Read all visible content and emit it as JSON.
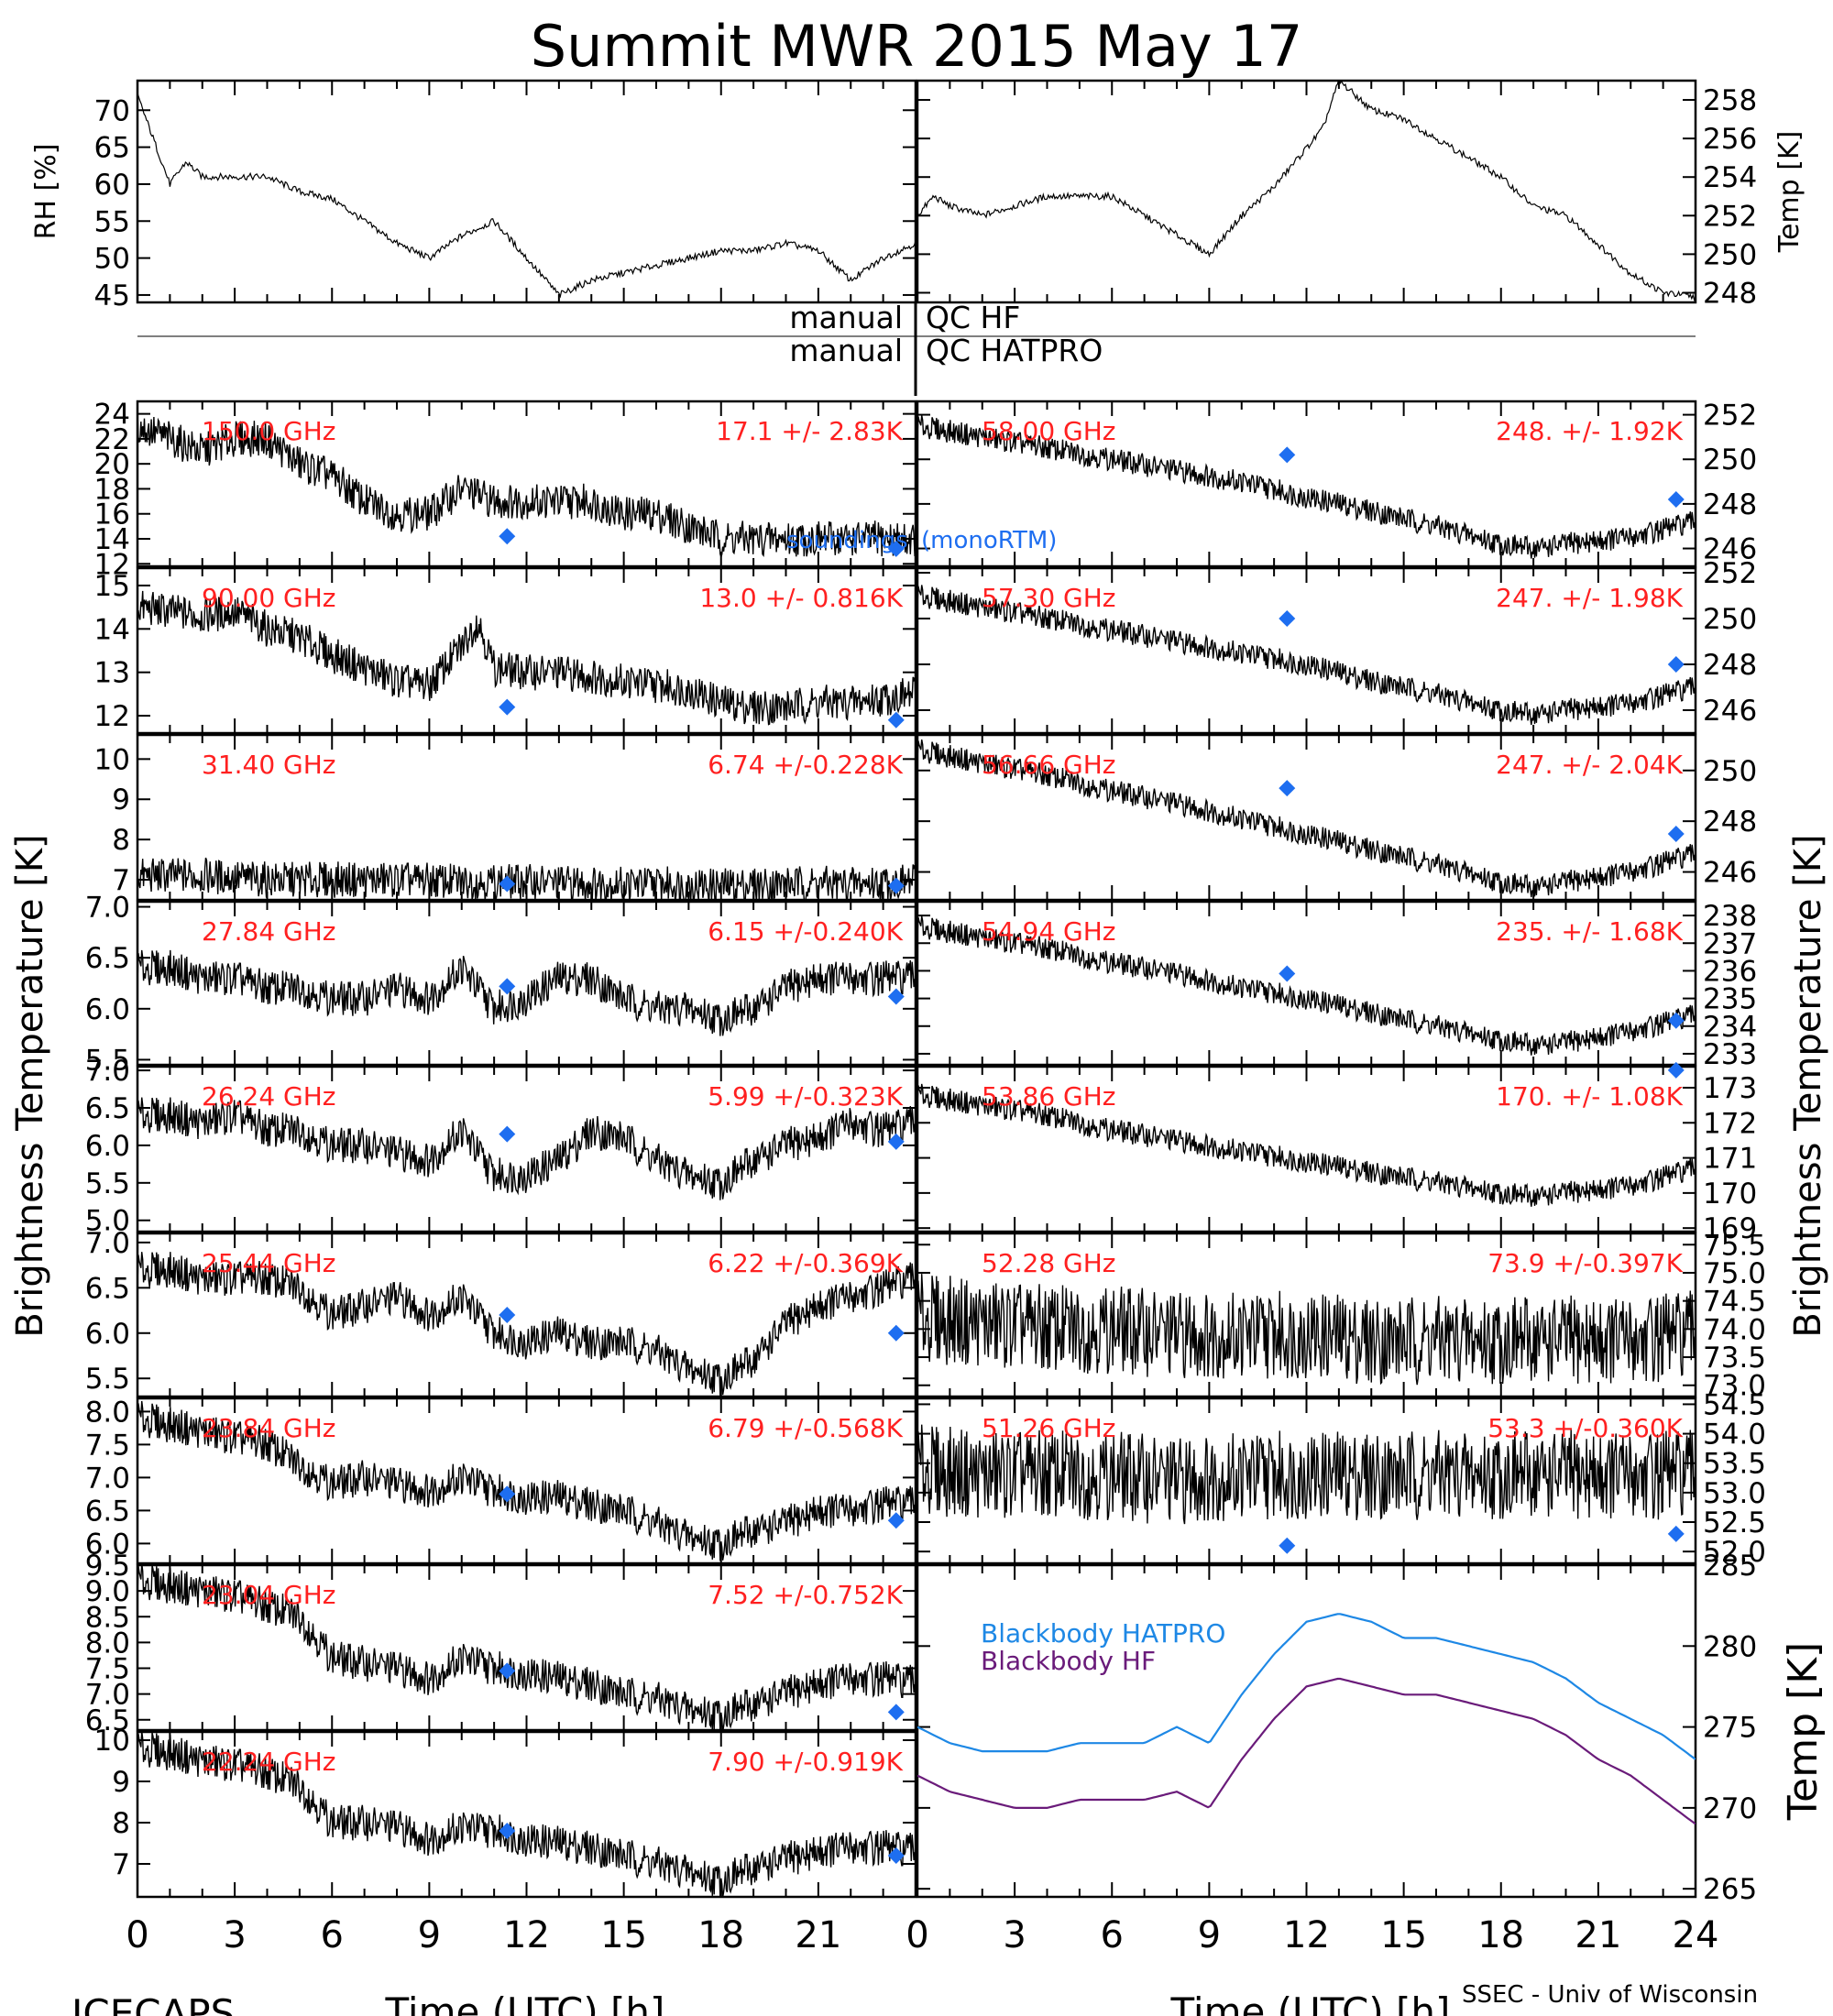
{
  "title": "Summit MWR 2015 May 17",
  "footer": {
    "left": "ICECAPS",
    "right": "SSEC - Univ of Wisconsin",
    "xlabel": "Time (UTC) [h]",
    "ylabel_left": "Brightness Temperature [K]",
    "ylabel_right": "Brightness Temperature [K]"
  },
  "qc": {
    "hf": {
      "left": "manual",
      "right": "QC HF"
    },
    "hatpro": {
      "left": "manual",
      "right": "QC HATPRO"
    }
  },
  "legend_top": {
    "soundings": "soundings",
    "monortm": "(monoRTM)"
  },
  "colors": {
    "trace": "#000000",
    "label": "#ff2020",
    "marker": "#1e6ef0",
    "hatpro": "#1e88e5",
    "hf": "#6a1b7a"
  },
  "chart_data": [
    {
      "id": "rh",
      "type": "line",
      "ylabel": "RH [%]",
      "ylim": [
        44,
        74
      ],
      "yticks": [
        45,
        50,
        55,
        60,
        65,
        70
      ],
      "x": [
        0,
        0.5,
        1,
        1.5,
        2,
        3,
        4,
        5,
        6,
        7,
        8,
        9,
        10,
        11,
        12,
        13,
        14,
        15,
        16,
        17,
        18,
        19,
        20,
        21,
        22,
        23,
        24
      ],
      "y": [
        72,
        66,
        60,
        63,
        61,
        61,
        61,
        59,
        58,
        55,
        52,
        50,
        53,
        55,
        50,
        45,
        47,
        48,
        49,
        50,
        51,
        51,
        52,
        51,
        47,
        50,
        52
      ]
    },
    {
      "id": "temp",
      "type": "line",
      "ylabel": "Temp [K]",
      "ylim": [
        247.5,
        259
      ],
      "yticks": [
        248,
        250,
        252,
        254,
        256,
        258
      ],
      "x": [
        0,
        0.5,
        1,
        2,
        3,
        4,
        5,
        6,
        7,
        8,
        9,
        10,
        11,
        12,
        12.5,
        13,
        14,
        15,
        16,
        17,
        18,
        19,
        20,
        21,
        22,
        23,
        24
      ],
      "y": [
        252,
        253,
        252.5,
        252,
        252.5,
        253,
        253,
        253,
        252,
        251,
        250,
        252,
        253.5,
        255.5,
        256.5,
        259,
        257.5,
        257,
        256,
        255,
        254,
        252.5,
        252,
        250.5,
        249,
        248,
        247.8
      ]
    },
    {
      "id": "ch150",
      "type": "line",
      "label": "150.0 GHz",
      "stat": "17.1 +/- 2.83K",
      "ylim": [
        11.8,
        25
      ],
      "yticks": [
        12,
        14,
        16,
        18,
        20,
        22,
        24
      ],
      "x": [
        0,
        1,
        2,
        3,
        4,
        5,
        6,
        7,
        8,
        9,
        10,
        11,
        12,
        13,
        14,
        15,
        16,
        17,
        18,
        19,
        20,
        21,
        22,
        23,
        24
      ],
      "y": [
        23,
        22,
        21,
        22,
        22,
        20,
        19,
        17,
        16,
        16,
        18,
        17,
        17,
        17,
        17,
        16,
        16,
        15,
        14,
        14,
        14,
        14,
        14,
        14,
        14
      ],
      "soundings": [
        {
          "x": 11.4,
          "y": 14.2
        },
        {
          "x": 23.4,
          "y": 13.2
        }
      ]
    },
    {
      "id": "ch90",
      "type": "line",
      "label": "90.00 GHz",
      "stat": "13.0 +/- 0.816K",
      "ylim": [
        11.6,
        15.4
      ],
      "yticks": [
        12,
        13,
        14,
        15
      ],
      "x": [
        0,
        1,
        2,
        3,
        4,
        5,
        6,
        7,
        8,
        9,
        10,
        10.5,
        11,
        12,
        13,
        14,
        15,
        16,
        17,
        18,
        19,
        20,
        21,
        22,
        23,
        24
      ],
      "y": [
        14.5,
        14.4,
        14.3,
        14.4,
        14,
        13.8,
        13.4,
        13.1,
        12.8,
        12.7,
        13.6,
        14.2,
        13.1,
        13,
        13,
        12.9,
        12.8,
        12.7,
        12.6,
        12.3,
        12.2,
        12.2,
        12.3,
        12.3,
        12.4,
        12.5
      ],
      "soundings": [
        {
          "x": 11.4,
          "y": 12.2
        },
        {
          "x": 23.4,
          "y": 11.9
        }
      ]
    },
    {
      "id": "ch31",
      "type": "line",
      "label": "31.40 GHz",
      "stat": "6.74 +/-0.228K",
      "ylim": [
        6.5,
        10.6
      ],
      "yticks": [
        7,
        8,
        9,
        10
      ],
      "x": [
        0,
        2,
        4,
        6,
        8,
        10,
        12,
        14,
        16,
        18,
        20,
        22,
        24
      ],
      "y": [
        7.1,
        7.1,
        7,
        7,
        7,
        6.95,
        6.95,
        6.9,
        6.9,
        6.85,
        6.9,
        6.9,
        6.95
      ],
      "soundings": [
        {
          "x": 11.4,
          "y": 6.9
        },
        {
          "x": 23.4,
          "y": 6.85
        }
      ]
    },
    {
      "id": "ch2784",
      "type": "line",
      "label": "27.84 GHz",
      "stat": "6.15 +/-0.240K",
      "ylim": [
        5.45,
        7.05
      ],
      "yticks": [
        5.5,
        6.0,
        6.5,
        7.0
      ],
      "x": [
        0,
        1,
        2,
        3,
        4,
        5,
        6,
        7,
        8,
        9,
        10,
        11,
        12,
        13,
        14,
        15,
        16,
        17,
        18,
        19,
        20,
        21,
        22,
        23,
        24
      ],
      "y": [
        6.4,
        6.4,
        6.3,
        6.3,
        6.2,
        6.2,
        6.1,
        6.1,
        6.2,
        6.1,
        6.4,
        6.0,
        6.1,
        6.3,
        6.3,
        6.1,
        6.0,
        6.0,
        5.9,
        6.0,
        6.2,
        6.3,
        6.3,
        6.3,
        6.3
      ],
      "soundings": [
        {
          "x": 11.4,
          "y": 6.22
        },
        {
          "x": 23.4,
          "y": 6.12
        }
      ]
    },
    {
      "id": "ch2624",
      "type": "line",
      "label": "26.24 GHz",
      "stat": "5.99 +/-0.323K",
      "ylim": [
        4.85,
        7.05
      ],
      "yticks": [
        5.0,
        5.5,
        6.0,
        6.5,
        7.0
      ],
      "x": [
        0,
        1,
        2,
        3,
        4,
        5,
        6,
        7,
        8,
        9,
        10,
        11,
        12,
        13,
        14,
        15,
        16,
        17,
        18,
        19,
        20,
        21,
        22,
        23,
        24
      ],
      "y": [
        6.4,
        6.4,
        6.3,
        6.4,
        6.2,
        6.2,
        6.0,
        6.0,
        5.9,
        5.8,
        6.2,
        5.6,
        5.6,
        5.8,
        6.2,
        6.1,
        5.8,
        5.6,
        5.5,
        5.8,
        6.0,
        6.1,
        6.3,
        6.2,
        6.3
      ],
      "soundings": [
        {
          "x": 11.4,
          "y": 6.15
        },
        {
          "x": 23.4,
          "y": 6.05
        }
      ]
    },
    {
      "id": "ch2544",
      "type": "line",
      "label": "25.44 GHz",
      "stat": "6.22 +/-0.369K",
      "ylim": [
        5.3,
        7.1
      ],
      "yticks": [
        5.5,
        6.0,
        6.5,
        7.0
      ],
      "x": [
        0,
        1,
        2,
        3,
        4,
        5,
        6,
        7,
        8,
        9,
        10,
        11,
        12,
        13,
        14,
        15,
        16,
        17,
        18,
        19,
        20,
        21,
        22,
        23,
        24
      ],
      "y": [
        6.7,
        6.7,
        6.6,
        6.6,
        6.6,
        6.5,
        6.2,
        6.3,
        6.4,
        6.2,
        6.4,
        6.0,
        5.9,
        6.0,
        5.9,
        5.9,
        5.8,
        5.6,
        5.5,
        5.7,
        6.1,
        6.3,
        6.4,
        6.5,
        6.6
      ],
      "soundings": [
        {
          "x": 11.4,
          "y": 6.2
        },
        {
          "x": 23.4,
          "y": 6.0
        }
      ]
    },
    {
      "id": "ch2384",
      "type": "line",
      "label": "23.84 GHz",
      "stat": "6.79 +/-0.568K",
      "ylim": [
        5.7,
        8.2
      ],
      "yticks": [
        6.0,
        6.5,
        7.0,
        7.5,
        8.0
      ],
      "x": [
        0,
        1,
        2,
        3,
        4,
        5,
        6,
        7,
        8,
        9,
        10,
        11,
        12,
        13,
        14,
        15,
        16,
        17,
        18,
        19,
        20,
        21,
        22,
        23,
        24
      ],
      "y": [
        7.9,
        7.8,
        7.7,
        7.6,
        7.5,
        7.2,
        6.9,
        7.0,
        6.9,
        6.8,
        7.0,
        6.8,
        6.7,
        6.7,
        6.6,
        6.5,
        6.3,
        6.1,
        6.0,
        6.2,
        6.3,
        6.5,
        6.5,
        6.6,
        6.6
      ],
      "soundings": [
        {
          "x": 11.4,
          "y": 6.75
        },
        {
          "x": 23.4,
          "y": 6.35
        }
      ]
    },
    {
      "id": "ch2304",
      "type": "line",
      "label": "23.04 GHz",
      "stat": "7.52 +/-0.752K",
      "ylim": [
        6.3,
        9.5
      ],
      "yticks": [
        6.5,
        7.0,
        7.5,
        8.0,
        8.5,
        9.0,
        9.5
      ],
      "x": [
        0,
        1,
        2,
        3,
        4,
        5,
        6,
        7,
        8,
        9,
        10,
        11,
        12,
        13,
        14,
        15,
        16,
        17,
        18,
        19,
        20,
        21,
        22,
        23,
        24
      ],
      "y": [
        9.2,
        9.1,
        9.0,
        8.9,
        8.7,
        8.5,
        7.7,
        7.6,
        7.5,
        7.3,
        7.7,
        7.5,
        7.4,
        7.3,
        7.2,
        7.0,
        6.9,
        6.7,
        6.6,
        6.8,
        7.0,
        7.2,
        7.3,
        7.3,
        7.2
      ],
      "soundings": [
        {
          "x": 11.4,
          "y": 7.45
        },
        {
          "x": 23.4,
          "y": 6.65
        }
      ]
    },
    {
      "id": "ch2224",
      "type": "line",
      "label": "22.24 GHz",
      "stat": "7.90 +/-0.919K",
      "ylim": [
        6.2,
        10.2
      ],
      "yticks": [
        7,
        8,
        9,
        10
      ],
      "x": [
        0,
        1,
        2,
        3,
        4,
        5,
        6,
        7,
        8,
        9,
        10,
        11,
        12,
        13,
        14,
        15,
        16,
        17,
        18,
        19,
        20,
        21,
        22,
        23,
        24
      ],
      "y": [
        9.8,
        9.7,
        9.5,
        9.4,
        9.2,
        8.9,
        8.0,
        8.0,
        7.9,
        7.6,
        7.9,
        7.8,
        7.6,
        7.5,
        7.4,
        7.2,
        7.0,
        6.8,
        6.6,
        6.9,
        7.1,
        7.3,
        7.4,
        7.4,
        7.3
      ],
      "soundings": [
        {
          "x": 11.4,
          "y": 7.8
        },
        {
          "x": 23.4,
          "y": 7.2
        }
      ]
    },
    {
      "id": "ch5800",
      "type": "line",
      "label": "58.00 GHz",
      "stat": "248. +/- 1.92K",
      "ylim": [
        245.2,
        252.6
      ],
      "yticks": [
        246,
        248,
        250,
        252
      ],
      "x": [
        0,
        2,
        4,
        6,
        8,
        10,
        12,
        14,
        16,
        18,
        19,
        20,
        22,
        24
      ],
      "y": [
        251.5,
        251,
        250.5,
        250,
        249.5,
        249,
        248.3,
        247.7,
        247,
        246.2,
        246,
        246.2,
        246.5,
        247.2
      ],
      "soundings": [
        {
          "x": 11.4,
          "y": 250.2
        },
        {
          "x": 23.4,
          "y": 248.2
        }
      ]
    },
    {
      "id": "ch5730",
      "type": "line",
      "label": "57.30 GHz",
      "stat": "247. +/- 1.98K",
      "ylim": [
        245,
        252.2
      ],
      "yticks": [
        246,
        248,
        250,
        252
      ],
      "x": [
        0,
        2,
        4,
        6,
        8,
        10,
        12,
        14,
        16,
        18,
        19,
        20,
        22,
        24
      ],
      "y": [
        251,
        250.5,
        250,
        249.5,
        249,
        248.5,
        248,
        247.3,
        246.7,
        246,
        245.8,
        246,
        246.3,
        247
      ],
      "soundings": [
        {
          "x": 11.4,
          "y": 250
        },
        {
          "x": 23.4,
          "y": 248
        }
      ]
    },
    {
      "id": "ch5666",
      "type": "line",
      "label": "56.66 GHz",
      "stat": "247. +/- 2.04K",
      "ylim": [
        244.9,
        251.4
      ],
      "yticks": [
        246,
        248,
        250
      ],
      "x": [
        0,
        2,
        4,
        6,
        8,
        10,
        12,
        14,
        16,
        18,
        19,
        20,
        22,
        24
      ],
      "y": [
        250.8,
        250.3,
        249.8,
        249.2,
        248.7,
        248.1,
        247.5,
        246.9,
        246.3,
        245.6,
        245.4,
        245.6,
        246,
        246.7
      ],
      "soundings": [
        {
          "x": 11.4,
          "y": 249.3
        },
        {
          "x": 23.4,
          "y": 247.5
        }
      ]
    },
    {
      "id": "ch5486",
      "type": "line",
      "label": "54.94 GHz",
      "stat": "235. +/- 1.68K",
      "ylim": [
        232.6,
        238.5
      ],
      "yticks": [
        233,
        234,
        235,
        236,
        237,
        238
      ],
      "x": [
        0,
        2,
        4,
        6,
        8,
        10,
        12,
        14,
        16,
        18,
        19,
        20,
        22,
        24
      ],
      "y": [
        237.6,
        237.2,
        236.8,
        236.3,
        235.9,
        235.4,
        235,
        234.5,
        234,
        233.5,
        233.3,
        233.4,
        233.8,
        234.4
      ],
      "soundings": [
        {
          "x": 11.4,
          "y": 235.9
        },
        {
          "x": 23.4,
          "y": 234.2
        }
      ]
    },
    {
      "id": "ch5386",
      "type": "line",
      "label": "53.86 GHz",
      "stat": "170. +/- 1.08K",
      "ylim": [
        168.9,
        173.6
      ],
      "yticks": [
        169,
        170,
        171,
        172,
        173
      ],
      "x": [
        0,
        2,
        4,
        6,
        8,
        10,
        12,
        14,
        16,
        18,
        19,
        20,
        22,
        24
      ],
      "y": [
        172.8,
        172.5,
        172.2,
        171.8,
        171.5,
        171.2,
        170.9,
        170.6,
        170.3,
        170,
        169.9,
        170,
        170.2,
        170.7
      ],
      "soundings": [
        {
          "x": 23.4,
          "y": 173.5
        }
      ]
    },
    {
      "id": "ch5228",
      "type": "line",
      "label": "52.28 GHz",
      "stat": "73.9 +/-0.397K",
      "ylim": [
        72.8,
        75.7
      ],
      "yticks": [
        73.0,
        73.5,
        74.0,
        74.5,
        75.0,
        75.5
      ],
      "x": [
        0,
        2,
        4,
        6,
        8,
        10,
        12,
        14,
        16,
        18,
        20,
        22,
        24
      ],
      "y": [
        74.2,
        74.1,
        74.0,
        74.0,
        73.9,
        73.9,
        73.9,
        73.8,
        73.8,
        73.8,
        73.8,
        73.8,
        73.9
      ],
      "soundings": []
    },
    {
      "id": "ch5126",
      "type": "line",
      "label": "51.26 GHz",
      "stat": "53.3 +/-0.360K",
      "ylim": [
        51.8,
        54.6
      ],
      "yticks": [
        52.0,
        52.5,
        53.0,
        53.5,
        54.0,
        54.5
      ],
      "x": [
        0,
        2,
        4,
        6,
        8,
        10,
        12,
        14,
        16,
        18,
        20,
        22,
        24
      ],
      "y": [
        53.4,
        53.3,
        53.3,
        53.3,
        53.2,
        53.3,
        53.3,
        53.3,
        53.3,
        53.3,
        53.3,
        53.3,
        53.3
      ],
      "soundings": [
        {
          "x": 11.4,
          "y": 52.1
        },
        {
          "x": 23.4,
          "y": 52.3
        }
      ]
    },
    {
      "id": "blackbody",
      "type": "line",
      "ylabel": "Temp [K]",
      "ylim": [
        264.5,
        285
      ],
      "yticks": [
        265,
        270,
        275,
        280,
        285
      ],
      "x": [
        0,
        1,
        2,
        3,
        4,
        5,
        6,
        7,
        8,
        9,
        10,
        11,
        12,
        13,
        14,
        15,
        16,
        17,
        18,
        19,
        20,
        21,
        22,
        23,
        24
      ],
      "series": [
        {
          "name": "Blackbody HATPRO",
          "values": [
            275,
            274,
            273.5,
            273.5,
            273.5,
            274,
            274,
            274,
            275,
            274,
            277,
            279.5,
            281.5,
            282,
            281.5,
            280.5,
            280.5,
            280,
            279.5,
            279,
            278,
            276.5,
            275.5,
            274.5,
            273
          ]
        },
        {
          "name": "Blackbody HF",
          "values": [
            272,
            271,
            270.5,
            270,
            270,
            270.5,
            270.5,
            270.5,
            271,
            270,
            273,
            275.5,
            277.5,
            278,
            277.5,
            277,
            277,
            276.5,
            276,
            275.5,
            274.5,
            273,
            272,
            270.5,
            269
          ]
        }
      ]
    }
  ]
}
